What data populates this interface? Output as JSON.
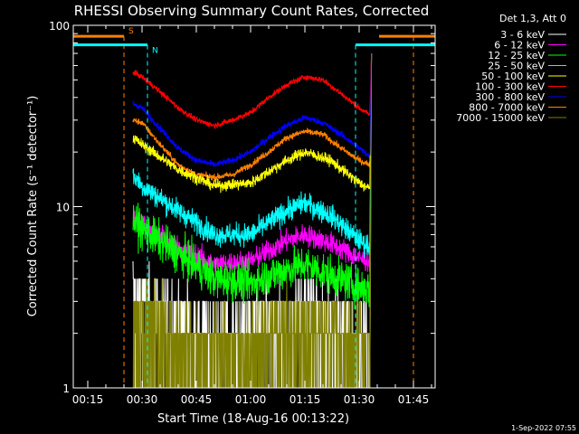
{
  "chart_data": {
    "type": "line",
    "title": "RHESSI Observing Summary Count Rates, Corrected",
    "xlabel": "Start Time (18-Aug-16 00:13:22)",
    "ylabel": "Corrected Count Rate (s⁻¹ detector⁻¹)",
    "yscale": "log",
    "xlim_minutes": [
      11,
      111
    ],
    "ylim": [
      1,
      100
    ],
    "x_ticks": [
      {
        "t": 15,
        "label": "00:15"
      },
      {
        "t": 30,
        "label": "00:30"
      },
      {
        "t": 45,
        "label": "00:45"
      },
      {
        "t": 60,
        "label": "01:00"
      },
      {
        "t": 75,
        "label": "01:15"
      },
      {
        "t": 90,
        "label": "01:30"
      },
      {
        "t": 105,
        "label": "01:45"
      }
    ],
    "y_ticks": [
      {
        "v": 1,
        "label": "1"
      },
      {
        "v": 10,
        "label": "10"
      },
      {
        "v": 100,
        "label": "100"
      }
    ],
    "legend_title": "Det 1,3, Att 0",
    "legend_placement": "top-right, outside plot",
    "series": [
      {
        "name": "3 - 6 keV",
        "color": "#ffffff",
        "noise": 0.18,
        "floor": 2.0,
        "points": [
          [
            27.5,
            3.8
          ],
          [
            30,
            3.2
          ],
          [
            40,
            2.6
          ],
          [
            50,
            2.3
          ],
          [
            60,
            2.4
          ],
          [
            70,
            2.8
          ],
          [
            75,
            3.0
          ],
          [
            82,
            2.7
          ],
          [
            90,
            2.3
          ],
          [
            93,
            2.2
          ]
        ]
      },
      {
        "name": "6 - 12 keV",
        "color": "#ff00ff",
        "noise": 0.07,
        "points": [
          [
            27.5,
            9.0
          ],
          [
            30,
            8.0
          ],
          [
            40,
            6.0
          ],
          [
            50,
            4.8
          ],
          [
            60,
            5.0
          ],
          [
            70,
            6.5
          ],
          [
            75,
            7.0
          ],
          [
            82,
            6.3
          ],
          [
            90,
            5.2
          ],
          [
            93,
            5.0
          ]
        ]
      },
      {
        "name": "12 - 25 keV",
        "color": "#00ff00",
        "noise": 0.12,
        "points": [
          [
            27.5,
            8.5
          ],
          [
            30,
            7.5
          ],
          [
            40,
            5.5
          ],
          [
            50,
            4.0
          ],
          [
            60,
            3.8
          ],
          [
            70,
            4.5
          ],
          [
            75,
            4.8
          ],
          [
            82,
            4.2
          ],
          [
            90,
            3.6
          ],
          [
            93,
            3.5
          ]
        ]
      },
      {
        "name": "25 - 50 keV",
        "color": "#00ffff",
        "noise": 0.07,
        "points": [
          [
            27.5,
            15.0
          ],
          [
            30,
            13.0
          ],
          [
            40,
            9.5
          ],
          [
            50,
            7.0
          ],
          [
            60,
            7.0
          ],
          [
            70,
            9.5
          ],
          [
            75,
            10.5
          ],
          [
            82,
            9.0
          ],
          [
            90,
            6.5
          ],
          [
            93,
            6.0
          ]
        ]
      },
      {
        "name": "50 - 100 keV",
        "color": "#ffff00",
        "noise": 0.035,
        "points": [
          [
            27.5,
            24.0
          ],
          [
            30,
            22.0
          ],
          [
            40,
            16.0
          ],
          [
            50,
            13.0
          ],
          [
            60,
            13.5
          ],
          [
            70,
            18.0
          ],
          [
            75,
            20.0
          ],
          [
            82,
            18.0
          ],
          [
            90,
            13.5
          ],
          [
            93,
            12.5
          ]
        ]
      },
      {
        "name": "100 - 300 keV",
        "color": "#ff0000",
        "noise": 0.018,
        "points": [
          [
            27.5,
            55.0
          ],
          [
            30,
            52.0
          ],
          [
            35,
            43.0
          ],
          [
            40,
            35.0
          ],
          [
            45,
            30.0
          ],
          [
            50,
            28.0
          ],
          [
            55,
            30.0
          ],
          [
            60,
            33.0
          ],
          [
            65,
            40.0
          ],
          [
            70,
            47.0
          ],
          [
            75,
            52.0
          ],
          [
            80,
            50.0
          ],
          [
            85,
            42.0
          ],
          [
            90,
            35.0
          ],
          [
            93,
            32.0
          ]
        ]
      },
      {
        "name": "300 - 800 keV",
        "color": "#0000ff",
        "noise": 0.02,
        "points": [
          [
            27.5,
            37.0
          ],
          [
            30,
            35.0
          ],
          [
            35,
            27.0
          ],
          [
            40,
            21.0
          ],
          [
            45,
            18.0
          ],
          [
            50,
            17.0
          ],
          [
            55,
            18.0
          ],
          [
            60,
            20.0
          ],
          [
            65,
            24.0
          ],
          [
            70,
            28.0
          ],
          [
            75,
            31.0
          ],
          [
            80,
            29.0
          ],
          [
            85,
            25.0
          ],
          [
            90,
            21.0
          ],
          [
            93,
            19.0
          ]
        ]
      },
      {
        "name": "800 - 7000 keV",
        "color": "#ff8000",
        "noise": 0.02,
        "points": [
          [
            27.5,
            30.0
          ],
          [
            30,
            29.0
          ],
          [
            35,
            22.0
          ],
          [
            40,
            17.0
          ],
          [
            45,
            15.0
          ],
          [
            50,
            14.5
          ],
          [
            55,
            15.0
          ],
          [
            60,
            17.0
          ],
          [
            65,
            20.0
          ],
          [
            70,
            24.0
          ],
          [
            75,
            26.0
          ],
          [
            80,
            25.0
          ],
          [
            85,
            21.0
          ],
          [
            90,
            18.0
          ],
          [
            93,
            17.0
          ]
        ]
      },
      {
        "name": "7000 - 15000 keV",
        "color": "#808000",
        "noise": 0.15,
        "floor": 2.0,
        "points": [
          [
            27.5,
            3.0
          ],
          [
            30,
            2.8
          ],
          [
            40,
            2.3
          ],
          [
            50,
            2.0
          ],
          [
            60,
            2.1
          ],
          [
            70,
            2.4
          ],
          [
            75,
            2.5
          ],
          [
            82,
            2.4
          ],
          [
            90,
            2.1
          ],
          [
            93,
            2.0
          ]
        ]
      }
    ],
    "flags": [
      {
        "label": "S",
        "color": "#ff8000",
        "y": 87,
        "segments": [
          [
            11,
            25.0
          ],
          [
            95.5,
            111
          ]
        ],
        "dashed_at": [
          25.0,
          105.0
        ]
      },
      {
        "label": "N",
        "color": "#00ffff",
        "y": 78,
        "segments": [
          [
            11,
            31.5
          ],
          [
            89.0,
            111
          ]
        ],
        "dashed_at": [
          31.5,
          89.0
        ]
      }
    ],
    "grid": false
  },
  "footer": {
    "timestamp": "1-Sep-2022 07:55"
  }
}
